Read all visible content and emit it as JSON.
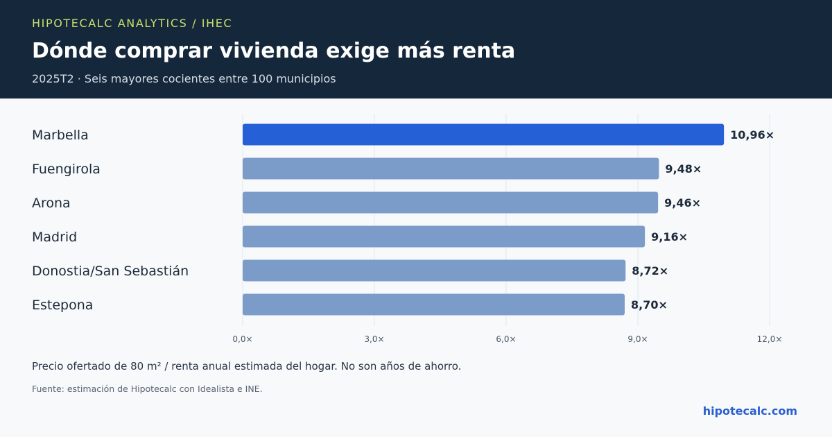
{
  "header": {
    "kicker": "HIPOTECALC ANALYTICS / IHEC",
    "title": "Dónde comprar vivienda exige más renta",
    "subtitle": "2025T2 · Seis mayores cocientes entre 100 municipios"
  },
  "chart_data": {
    "type": "bar",
    "orientation": "horizontal",
    "categories": [
      "Marbella",
      "Fuengirola",
      "Arona",
      "Madrid",
      "Donostia/San Sebastián",
      "Estepona"
    ],
    "values": [
      10.96,
      9.48,
      9.46,
      9.16,
      8.72,
      8.7
    ],
    "value_labels": [
      "10,96×",
      "9,48×",
      "9,46×",
      "9,16×",
      "8,72×",
      "8,70×"
    ],
    "xlim": [
      0,
      12
    ],
    "x_ticks": [
      0,
      3,
      6,
      9,
      12
    ],
    "x_tick_labels": [
      "0,0×",
      "3,0×",
      "6,0×",
      "9,0×",
      "12,0×"
    ],
    "highlight_index": 0,
    "colors": {
      "highlight": "#2560d6",
      "default": "#7b9bc9",
      "grid": "#e3e7ec"
    },
    "grid": true
  },
  "footer": {
    "note": "Precio ofertado de 80 m² / renta anual estimada del hogar. No son años de ahorro.",
    "source": "Fuente: estimación de Hipotecalc con Idealista e INE.",
    "brand": "hipotecalc.com"
  }
}
